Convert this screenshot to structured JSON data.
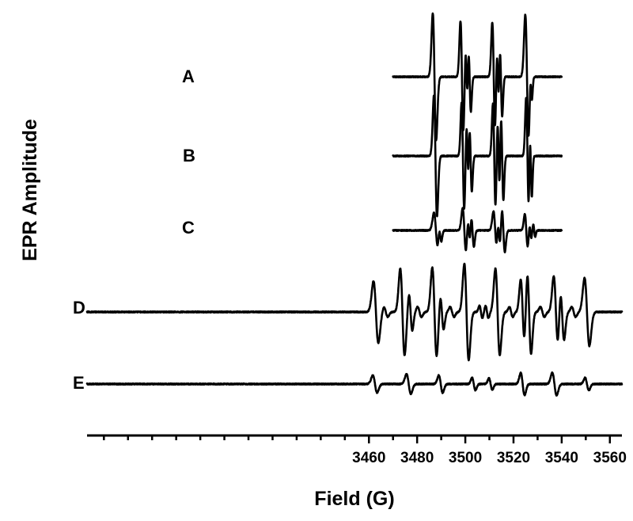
{
  "chart_data": {
    "type": "line",
    "title": "",
    "xlabel": "Field (G)",
    "ylabel": "EPR Amplitude",
    "xlim": [
      3343,
      3565
    ],
    "xticks": [
      3460,
      3480,
      3500,
      3520,
      3540,
      3560
    ],
    "minor_ticks": true,
    "grid": false,
    "legend": "none",
    "series_labels_position": "left of each trace",
    "line_color": "#000000",
    "units": "arbitrary amplitude, traces vertically offset",
    "series": [
      {
        "name": "A",
        "x_range": [
          3470,
          3540
        ],
        "baseline": 0,
        "lines": [
          {
            "center": 3487.2,
            "amp": 1.0,
            "width": 0.7
          },
          {
            "center": 3498.6,
            "amp": 0.88,
            "width": 0.6
          },
          {
            "center": 3500.5,
            "amp": 0.48,
            "width": 0.45
          },
          {
            "center": 3501.8,
            "amp": 0.55,
            "width": 0.5
          },
          {
            "center": 3511.8,
            "amp": 0.86,
            "width": 0.6
          },
          {
            "center": 3513.5,
            "amp": 0.55,
            "width": 0.45
          },
          {
            "center": 3514.8,
            "amp": 0.62,
            "width": 0.5
          },
          {
            "center": 3525.6,
            "amp": 0.98,
            "width": 0.7
          },
          {
            "center": 3527.3,
            "amp": 0.3,
            "width": 0.4
          }
        ]
      },
      {
        "name": "B",
        "x_range": [
          3470,
          3540
        ],
        "baseline": 0,
        "lines": [
          {
            "center": 3487.6,
            "amp": 0.95,
            "width": 0.65
          },
          {
            "center": 3499.0,
            "amp": 0.84,
            "width": 0.55
          },
          {
            "center": 3500.9,
            "amp": 0.5,
            "width": 0.42
          },
          {
            "center": 3502.2,
            "amp": 0.56,
            "width": 0.5
          },
          {
            "center": 3512.0,
            "amp": 0.82,
            "width": 0.55
          },
          {
            "center": 3513.8,
            "amp": 0.6,
            "width": 0.45
          },
          {
            "center": 3515.3,
            "amp": 0.7,
            "width": 0.5
          },
          {
            "center": 3525.8,
            "amp": 0.92,
            "width": 0.55
          },
          {
            "center": 3527.2,
            "amp": 0.62,
            "width": 0.42
          }
        ]
      },
      {
        "name": "C",
        "x_range": [
          3470,
          3540
        ],
        "baseline": 0,
        "lines": [
          {
            "center": 3487.8,
            "amp": 0.28,
            "width": 0.8
          },
          {
            "center": 3489.6,
            "amp": 0.15,
            "width": 0.5
          },
          {
            "center": 3499.6,
            "amp": 0.35,
            "width": 0.7
          },
          {
            "center": 3501.5,
            "amp": 0.22,
            "width": 0.5
          },
          {
            "center": 3503.0,
            "amp": 0.26,
            "width": 0.55
          },
          {
            "center": 3512.4,
            "amp": 0.3,
            "width": 0.7
          },
          {
            "center": 3514.0,
            "amp": 0.24,
            "width": 0.5
          },
          {
            "center": 3515.8,
            "amp": 0.34,
            "width": 0.6
          },
          {
            "center": 3525.3,
            "amp": 0.26,
            "width": 0.6
          },
          {
            "center": 3527.0,
            "amp": 0.12,
            "width": 0.4
          },
          {
            "center": 3528.6,
            "amp": 0.1,
            "width": 0.4
          }
        ]
      },
      {
        "name": "D",
        "x_range": [
          3343,
          3565
        ],
        "baseline": 0,
        "lines": [
          {
            "center": 3462.9,
            "amp": 0.5,
            "width": 1.0
          },
          {
            "center": 3467.0,
            "amp": 0.08,
            "width": 0.8
          },
          {
            "center": 3473.9,
            "amp": 0.7,
            "width": 0.9
          },
          {
            "center": 3477.3,
            "amp": 0.3,
            "width": 0.7
          },
          {
            "center": 3481.0,
            "amp": 0.08,
            "width": 0.8
          },
          {
            "center": 3487.2,
            "amp": 0.72,
            "width": 0.9
          },
          {
            "center": 3490.3,
            "amp": 0.28,
            "width": 0.7
          },
          {
            "center": 3494.5,
            "amp": 0.08,
            "width": 0.8
          },
          {
            "center": 3500.5,
            "amp": 0.78,
            "width": 0.9
          },
          {
            "center": 3506.5,
            "amp": 0.1,
            "width": 0.6
          },
          {
            "center": 3509.0,
            "amp": 0.1,
            "width": 0.6
          },
          {
            "center": 3513.4,
            "amp": 0.7,
            "width": 0.9
          },
          {
            "center": 3519.0,
            "amp": 0.08,
            "width": 0.7
          },
          {
            "center": 3523.8,
            "amp": 0.52,
            "width": 0.8
          },
          {
            "center": 3526.5,
            "amp": 0.68,
            "width": 0.8
          },
          {
            "center": 3532.0,
            "amp": 0.08,
            "width": 0.8
          },
          {
            "center": 3537.6,
            "amp": 0.58,
            "width": 0.9
          },
          {
            "center": 3540.2,
            "amp": 0.45,
            "width": 0.8
          },
          {
            "center": 3545.0,
            "amp": 0.08,
            "width": 0.8
          },
          {
            "center": 3550.5,
            "amp": 0.55,
            "width": 1.0
          }
        ]
      },
      {
        "name": "E",
        "x_range": [
          3343,
          3565
        ],
        "baseline": 0,
        "lines": [
          {
            "center": 3462.5,
            "amp": 0.14,
            "width": 0.9
          },
          {
            "center": 3476.5,
            "amp": 0.16,
            "width": 0.9
          },
          {
            "center": 3489.8,
            "amp": 0.14,
            "width": 0.8
          },
          {
            "center": 3503.5,
            "amp": 0.1,
            "width": 0.7
          },
          {
            "center": 3510.5,
            "amp": 0.09,
            "width": 0.7
          },
          {
            "center": 3523.8,
            "amp": 0.18,
            "width": 0.8
          },
          {
            "center": 3537.0,
            "amp": 0.18,
            "width": 0.9
          },
          {
            "center": 3550.5,
            "amp": 0.1,
            "width": 0.8
          }
        ]
      }
    ]
  }
}
